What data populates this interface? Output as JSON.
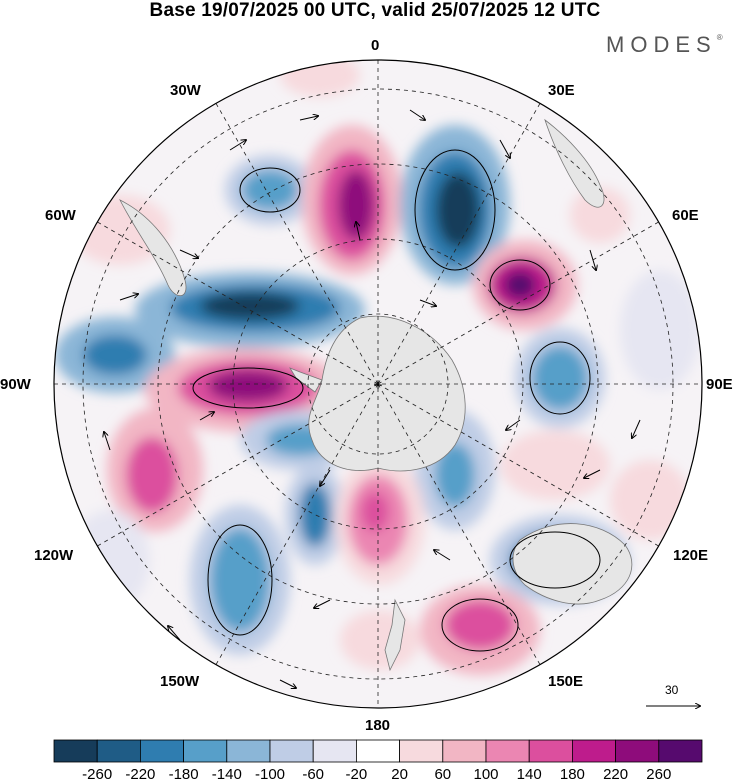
{
  "title": "Base 19/07/2025 00 UTC, valid 25/07/2025 12 UTC",
  "brand": "MODES",
  "brand_mark": "®",
  "longitude_labels": {
    "top": "0",
    "right": "90E",
    "bottom": "180",
    "left": "90W",
    "ne": "30E",
    "ene": "60E",
    "ese": "120E",
    "se": "150E",
    "nw": "30W",
    "wnw": "60W",
    "wsw": "120W",
    "sw": "150W"
  },
  "reference_vector_label": "30",
  "colorbar": {
    "ticks": [
      "-260",
      "-220",
      "-180",
      "-140",
      "-100",
      "-60",
      "-20",
      "20",
      "60",
      "100",
      "140",
      "180",
      "220",
      "260"
    ],
    "colors": [
      "#163c5a",
      "#1f5c86",
      "#2f7db0",
      "#579fc9",
      "#8bb6d7",
      "#bfcde6",
      "#e6e6f2",
      "#ffffff",
      "#f7dade",
      "#f2b6c4",
      "#eb86b2",
      "#dc4f9e",
      "#be1c8c",
      "#8e0c7b",
      "#560a6e"
    ]
  }
}
